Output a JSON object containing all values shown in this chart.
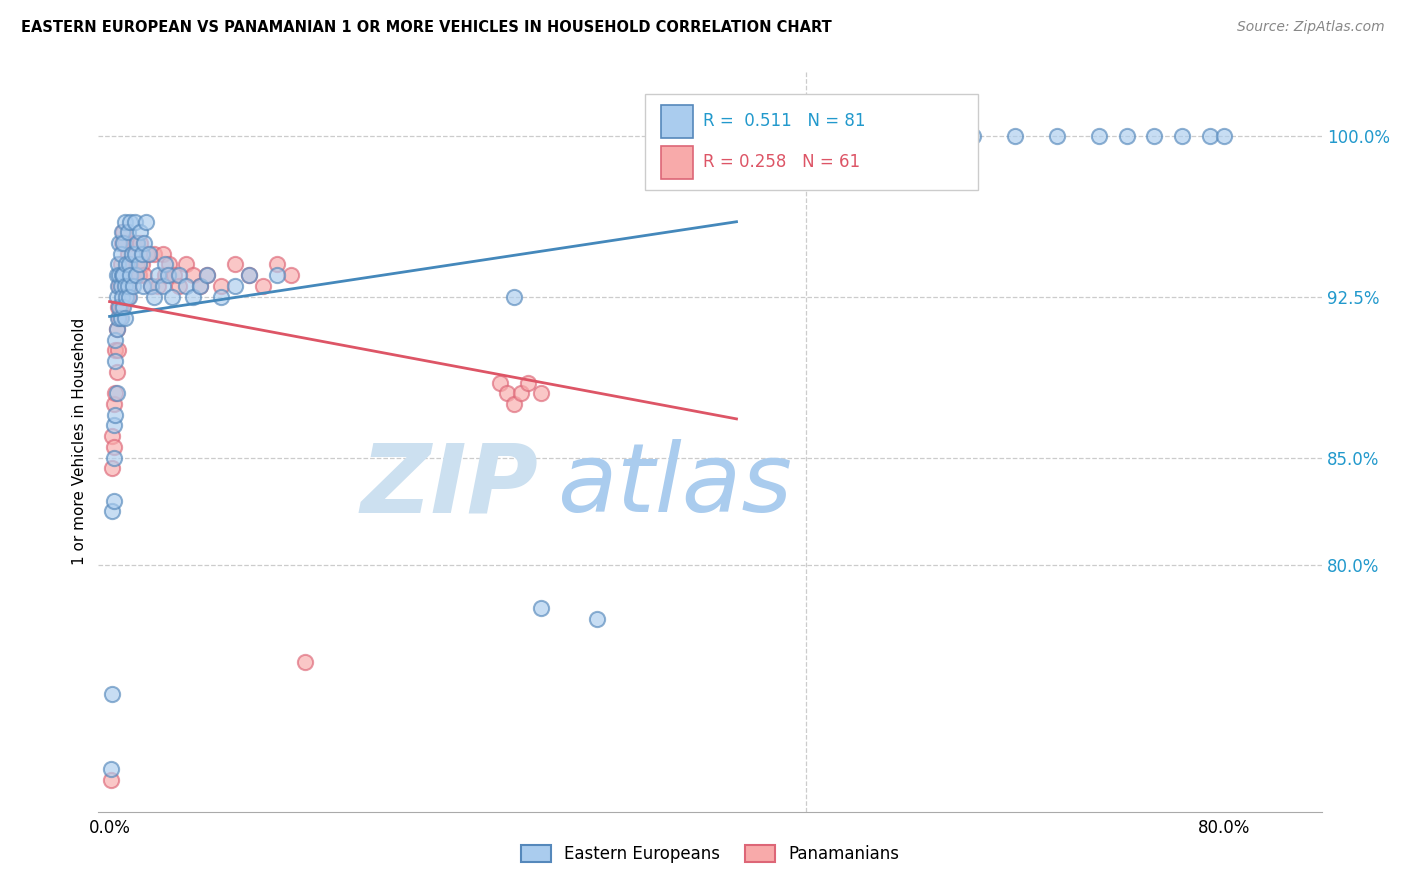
{
  "title": "EASTERN EUROPEAN VS PANAMANIAN 1 OR MORE VEHICLES IN HOUSEHOLD CORRELATION CHART",
  "source": "Source: ZipAtlas.com",
  "ylabel": "1 or more Vehicles in Household",
  "legend_blue_label": "Eastern Europeans",
  "legend_pink_label": "Panamanians",
  "yticks": [
    80.0,
    85.0,
    92.5,
    100.0
  ],
  "ytick_labels": [
    "80.0%",
    "85.0%",
    "92.5%",
    "100.0%"
  ],
  "ymin": 68.5,
  "ymax": 103.0,
  "xmin": -0.008,
  "xmax": 0.87,
  "blue_R": 0.511,
  "blue_N": 81,
  "pink_R": 0.258,
  "pink_N": 61,
  "blue_face": "#aaccee",
  "blue_edge": "#5588bb",
  "pink_face": "#f8aaaa",
  "pink_edge": "#dd6677",
  "blue_line": "#4488bb",
  "pink_line": "#dd5566",
  "watermark_zip": "#cce0f0",
  "watermark_atlas": "#aaccee",
  "blue_x": [
    0.001,
    0.002,
    0.002,
    0.003,
    0.003,
    0.003,
    0.004,
    0.004,
    0.004,
    0.005,
    0.005,
    0.005,
    0.005,
    0.006,
    0.006,
    0.006,
    0.007,
    0.007,
    0.007,
    0.008,
    0.008,
    0.008,
    0.009,
    0.009,
    0.009,
    0.01,
    0.01,
    0.01,
    0.011,
    0.011,
    0.011,
    0.012,
    0.012,
    0.013,
    0.013,
    0.014,
    0.014,
    0.015,
    0.015,
    0.016,
    0.017,
    0.018,
    0.018,
    0.019,
    0.02,
    0.021,
    0.022,
    0.023,
    0.024,
    0.025,
    0.026,
    0.028,
    0.03,
    0.032,
    0.035,
    0.038,
    0.04,
    0.042,
    0.045,
    0.05,
    0.055,
    0.06,
    0.065,
    0.07,
    0.08,
    0.09,
    0.1,
    0.12,
    0.29,
    0.31,
    0.35,
    0.6,
    0.62,
    0.65,
    0.68,
    0.71,
    0.73,
    0.75,
    0.77,
    0.79,
    0.8
  ],
  "blue_y": [
    70.5,
    74.0,
    82.5,
    83.0,
    85.0,
    86.5,
    87.0,
    89.5,
    90.5,
    88.0,
    91.0,
    92.5,
    93.5,
    91.5,
    93.0,
    94.0,
    92.0,
    93.5,
    95.0,
    91.5,
    93.0,
    94.5,
    92.5,
    93.5,
    95.5,
    92.0,
    93.5,
    95.0,
    91.5,
    93.0,
    96.0,
    92.5,
    94.0,
    93.0,
    95.5,
    92.5,
    94.0,
    93.5,
    96.0,
    94.5,
    93.0,
    94.5,
    96.0,
    93.5,
    95.0,
    94.0,
    95.5,
    94.5,
    93.0,
    95.0,
    96.0,
    94.5,
    93.0,
    92.5,
    93.5,
    93.0,
    94.0,
    93.5,
    92.5,
    93.5,
    93.0,
    92.5,
    93.0,
    93.5,
    92.5,
    93.0,
    93.5,
    93.5,
    92.5,
    78.0,
    77.5,
    100.0,
    100.0,
    100.0,
    100.0,
    100.0,
    100.0,
    100.0,
    100.0,
    100.0,
    100.0
  ],
  "pink_x": [
    0.001,
    0.002,
    0.002,
    0.003,
    0.003,
    0.004,
    0.004,
    0.005,
    0.005,
    0.006,
    0.006,
    0.007,
    0.007,
    0.008,
    0.008,
    0.009,
    0.009,
    0.01,
    0.01,
    0.011,
    0.011,
    0.012,
    0.013,
    0.013,
    0.014,
    0.015,
    0.016,
    0.017,
    0.018,
    0.019,
    0.02,
    0.021,
    0.022,
    0.023,
    0.025,
    0.027,
    0.03,
    0.032,
    0.035,
    0.038,
    0.04,
    0.043,
    0.046,
    0.05,
    0.055,
    0.06,
    0.065,
    0.07,
    0.08,
    0.09,
    0.1,
    0.11,
    0.12,
    0.13,
    0.14,
    0.28,
    0.285,
    0.29,
    0.295,
    0.3,
    0.31
  ],
  "pink_y": [
    70.0,
    84.5,
    86.0,
    85.5,
    87.5,
    88.0,
    90.0,
    89.0,
    91.0,
    90.0,
    92.0,
    91.5,
    93.0,
    92.0,
    94.0,
    93.0,
    95.0,
    93.5,
    95.5,
    93.0,
    95.0,
    93.5,
    92.5,
    94.5,
    93.0,
    94.0,
    93.5,
    95.0,
    93.5,
    95.0,
    94.0,
    93.5,
    95.0,
    94.0,
    93.5,
    94.5,
    93.0,
    94.5,
    93.0,
    94.5,
    93.5,
    94.0,
    93.5,
    93.0,
    94.0,
    93.5,
    93.0,
    93.5,
    93.0,
    94.0,
    93.5,
    93.0,
    94.0,
    93.5,
    75.5,
    88.5,
    88.0,
    87.5,
    88.0,
    88.5,
    88.0
  ]
}
